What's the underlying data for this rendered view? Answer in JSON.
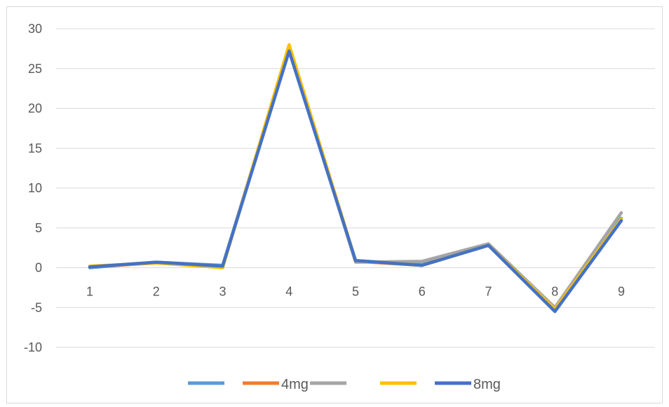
{
  "chart_data": {
    "type": "line",
    "title": "",
    "xlabel": "",
    "ylabel": "",
    "categories": [
      "1",
      "2",
      "3",
      "4",
      "5",
      "6",
      "7",
      "8",
      "9"
    ],
    "ylim": [
      -10,
      30
    ],
    "yticks": [
      30,
      25,
      20,
      15,
      10,
      5,
      0,
      -5,
      -10
    ],
    "ytick_labels": [
      "30",
      "25",
      "20",
      "15",
      "10",
      "5",
      "0",
      "-5",
      "-10"
    ],
    "grid": true,
    "legend_position": "bottom",
    "series": [
      {
        "name": "",
        "color": "#5B9BD5",
        "values": [
          0.0,
          0.7,
          0.3,
          27.5,
          0.9,
          0.4,
          2.9,
          -5.2,
          6.2
        ]
      },
      {
        "name": "4mg",
        "color": "#ED7D31",
        "values": [
          0.1,
          0.6,
          0.1,
          27.8,
          0.8,
          0.3,
          2.9,
          -5.3,
          6.0
        ]
      },
      {
        "name": "",
        "color": "#A5A5A5",
        "values": [
          0.1,
          0.7,
          0.2,
          27.6,
          0.7,
          0.8,
          3.0,
          -5.0,
          6.9
        ]
      },
      {
        "name": "",
        "color": "#FFC000",
        "values": [
          0.2,
          0.6,
          0.0,
          28.0,
          0.9,
          0.3,
          2.8,
          -5.2,
          6.1
        ]
      },
      {
        "name": "8mg",
        "color": "#4472C4",
        "values": [
          0.1,
          0.7,
          0.2,
          27.2,
          0.9,
          0.3,
          2.8,
          -5.5,
          5.9
        ]
      }
    ]
  }
}
